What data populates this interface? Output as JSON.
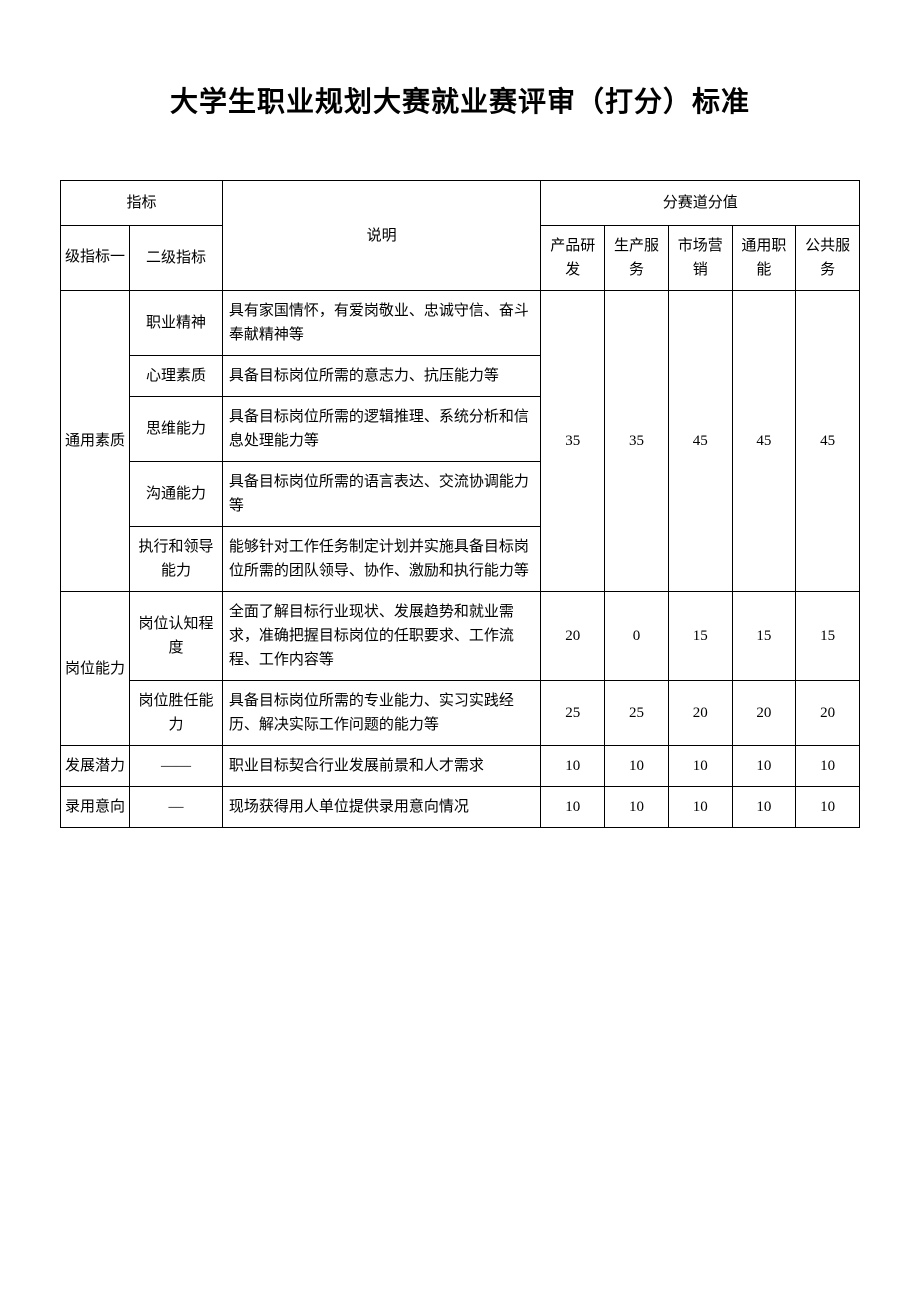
{
  "title": "大学生职业规划大赛就业赛评审（打分）标准",
  "headers": {
    "indicator": "指标",
    "level1": "级指标一",
    "level2": "二级指标",
    "description": "说明",
    "track_scores": "分赛道分值",
    "tracks": {
      "t1": "产品研发",
      "t2": "生产服务",
      "t3": "市场营销",
      "t4": "通用职能",
      "t5": "公共服务"
    }
  },
  "groups": {
    "g1": {
      "l1": "通用素质",
      "rows": {
        "r1": {
          "l2": "职业精神",
          "desc": "具有家国情怀，有爱岗敬业、忠诚守信、奋斗奉献精神等"
        },
        "r2": {
          "l2": "心理素质",
          "desc": "具备目标岗位所需的意志力、抗压能力等"
        },
        "r3": {
          "l2": "思维能力",
          "desc": "具备目标岗位所需的逻辑推理、系统分析和信息处理能力等"
        },
        "r4": {
          "l2": "沟通能力",
          "desc": "具备目标岗位所需的语言表达、交流协调能力等"
        },
        "r5": {
          "l2": "执行和领导能力",
          "desc": "能够针对工作任务制定计划并实施具备目标岗位所需的团队领导、协作、激励和执行能力等"
        }
      },
      "scores": {
        "t1": "35",
        "t2": "35",
        "t3": "45",
        "t4": "45",
        "t5": "45"
      }
    },
    "g2": {
      "l1": "岗位能力",
      "rows": {
        "r1": {
          "l2": "岗位认知程度",
          "desc": "全面了解目标行业现状、发展趋势和就业需求，准确把握目标岗位的任职要求、工作流程、工作内容等",
          "scores": {
            "t1": "20",
            "t2": "0",
            "t3": "15",
            "t4": "15",
            "t5": "15"
          }
        },
        "r2": {
          "l2": "岗位胜任能力",
          "desc": "具备目标岗位所需的专业能力、实习实践经历、解决实际工作问题的能力等",
          "scores": {
            "t1": "25",
            "t2": "25",
            "t3": "20",
            "t4": "20",
            "t5": "20"
          }
        }
      }
    },
    "g3": {
      "l1": "发展潜力",
      "l2": "——",
      "desc": "职业目标契合行业发展前景和人才需求",
      "scores": {
        "t1": "10",
        "t2": "10",
        "t3": "10",
        "t4": "10",
        "t5": "10"
      }
    },
    "g4": {
      "l1": "录用意向",
      "l2": "—",
      "desc": "现场获得用人单位提供录用意向情况",
      "scores": {
        "t1": "10",
        "t2": "10",
        "t3": "10",
        "t4": "10",
        "t5": "10"
      }
    }
  }
}
